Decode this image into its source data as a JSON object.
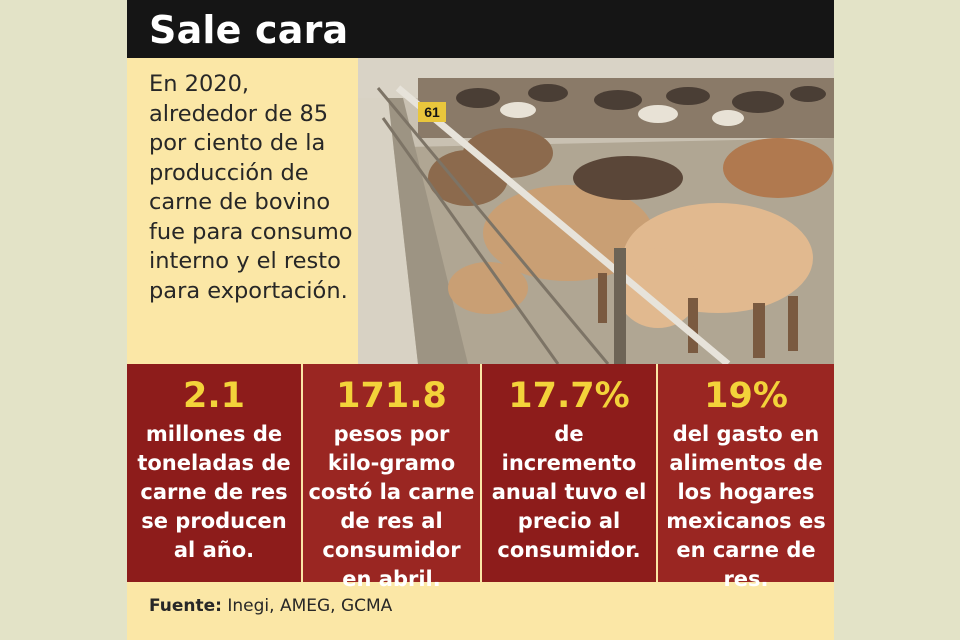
{
  "title": "Sale cara",
  "intro": "En 2020, alrededor de 85 por ciento de la producción de carne de bovino fue para consumo interno y el resto para exportación.",
  "photo_sign": "61",
  "stats": [
    {
      "value": "2.1",
      "desc": "millones de toneladas de carne de res se producen al año."
    },
    {
      "value": "171.8",
      "desc": "pesos por kilo-gramo costó la carne de res al consumidor en abril."
    },
    {
      "value": "17.7%",
      "desc": "de incremento anual tuvo el precio al consumidor."
    },
    {
      "value": "19%",
      "desc": "del gasto en alimentos de los hogares mexicanos es en carne de res."
    }
  ],
  "source": {
    "label": "Fuente:",
    "text": "Inegi, AMEG, GCMA"
  },
  "colors": {
    "header": "#151515",
    "card": "#fbe7a6",
    "stat_dark": "#8d1c1b",
    "stat_light": "#9a2622",
    "value": "#f3d33a"
  }
}
